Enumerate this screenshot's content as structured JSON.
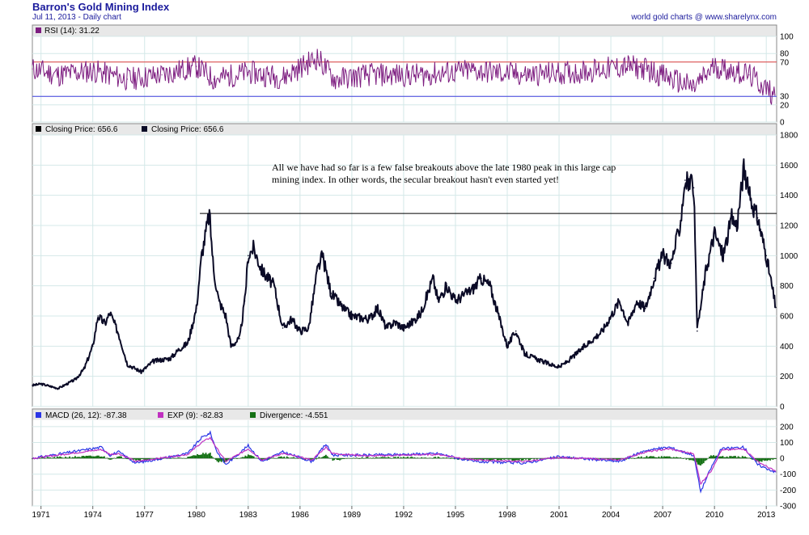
{
  "header": {
    "title": "Barron's Gold Mining Index",
    "subtitle": "Jul 11, 2013 - Daily chart",
    "credit": "world gold charts @ www.sharelynx.com"
  },
  "colors": {
    "price": "#0a0a26",
    "rsi": "#7d1d80",
    "macd": "#2a35e6",
    "exp": "#c030c0",
    "divergence": "#137013",
    "grid": "#d4e8e8",
    "overbought": "#e04040",
    "oversold": "#4040e0"
  },
  "chart_data": [
    {
      "type": "line",
      "panel": "RSI",
      "legend": "RSI (14): 31.22",
      "ylim": [
        0,
        100
      ],
      "yticks": [
        0,
        20,
        30,
        70,
        80,
        100
      ],
      "reference_lines": [
        70,
        30
      ],
      "x": [
        1970.5,
        1972,
        1974,
        1976,
        1978,
        1980,
        1981,
        1983,
        1985,
        1987,
        1988,
        1990,
        1993,
        1996,
        1999,
        2002,
        2005,
        2006,
        2008.8,
        2010,
        2012,
        2013.5
      ],
      "values": [
        62,
        55,
        60,
        50,
        55,
        65,
        50,
        58,
        52,
        75,
        50,
        55,
        55,
        60,
        55,
        58,
        65,
        62,
        40,
        65,
        55,
        31.22
      ]
    },
    {
      "type": "line",
      "panel": "Price",
      "legend": [
        "Closing Price: 656.6",
        "Closing Price: 656.6"
      ],
      "ylim": [
        0,
        1800
      ],
      "yticks": [
        0,
        200,
        400,
        600,
        800,
        1000,
        1200,
        1400,
        1600,
        1800
      ],
      "annotation": "All we have had so far is a few false breakouts above the late 1980 peak in this large cap mining index. In other words, the secular breakout hasn't even started yet!",
      "hline": {
        "y": 1280,
        "x_start": 1980.2,
        "x_end": 2013.6
      },
      "x": [
        1970.5,
        1971,
        1972,
        1973,
        1973.5,
        1974,
        1974.3,
        1974.7,
        1975,
        1975.5,
        1976,
        1976.8,
        1977.5,
        1978.5,
        1979,
        1979.5,
        1980,
        1980.3,
        1980.75,
        1981,
        1981.3,
        1981.7,
        1982,
        1982.5,
        1982.8,
        1983,
        1983.3,
        1983.8,
        1984.5,
        1985,
        1985.5,
        1986,
        1986.5,
        1987,
        1987.3,
        1987.8,
        1988.5,
        1989,
        1990,
        1990.5,
        1991,
        1991.5,
        1992,
        1992.5,
        1993,
        1993.7,
        1994,
        1994.5,
        1995,
        1996,
        1996.5,
        1997,
        1997.5,
        1998,
        1998.5,
        1999,
        2000,
        2001,
        2001.5,
        2002,
        2002.5,
        2003,
        2003.5,
        2004,
        2004.5,
        2005,
        2005.5,
        2006,
        2006.5,
        2007,
        2007.5,
        2008,
        2008.3,
        2008.8,
        2009,
        2009.5,
        2010,
        2010.5,
        2011,
        2011.3,
        2011.7,
        2012,
        2012.5,
        2013,
        2013.55
      ],
      "values": [
        140,
        150,
        120,
        180,
        250,
        400,
        600,
        550,
        620,
        480,
        280,
        230,
        300,
        320,
        380,
        420,
        650,
        1000,
        1280,
        900,
        700,
        600,
        400,
        450,
        700,
        1000,
        1050,
        900,
        800,
        520,
        580,
        500,
        520,
        900,
        1000,
        750,
        650,
        600,
        580,
        650,
        520,
        560,
        520,
        560,
        620,
        850,
        700,
        800,
        700,
        780,
        850,
        800,
        600,
        400,
        500,
        350,
        300,
        260,
        300,
        350,
        400,
        450,
        500,
        600,
        700,
        550,
        700,
        650,
        850,
        1000,
        950,
        1200,
        1500,
        1450,
        500,
        900,
        1150,
        1000,
        1250,
        1200,
        1580,
        1400,
        1250,
        1000,
        656.6
      ]
    },
    {
      "type": "line",
      "panel": "MACD",
      "legend": [
        "MACD (26, 12): -87.38",
        "EXP (9): -82.83",
        "Divergence: -4.551"
      ],
      "ylim": [
        -300,
        240
      ],
      "yticks": [
        -300,
        -200,
        -100,
        0,
        100,
        200
      ],
      "x": [
        1970.5,
        1974.5,
        1975,
        1975.5,
        1976.5,
        1979.5,
        1980.3,
        1980.8,
        1981.2,
        1981.7,
        1983,
        1983.8,
        1985,
        1986.7,
        1987.5,
        1987.9,
        1990,
        1994,
        1996,
        1999,
        2001,
        2004.5,
        2006,
        2007.4,
        2008.2,
        2008.8,
        2009.2,
        2009.8,
        2010.4,
        2011.7,
        2012.5,
        2013.55
      ],
      "series": [
        {
          "name": "MACD (26, 12): -87.38",
          "values": [
            0,
            70,
            20,
            40,
            -30,
            30,
            130,
            160,
            40,
            -40,
            80,
            -20,
            40,
            -20,
            90,
            20,
            20,
            30,
            -20,
            -30,
            10,
            -20,
            50,
            70,
            40,
            20,
            -210,
            -60,
            60,
            70,
            -40,
            -87.38
          ]
        },
        {
          "name": "EXP (9): -82.83",
          "values": [
            0,
            55,
            25,
            30,
            -20,
            25,
            100,
            130,
            60,
            -20,
            60,
            -10,
            30,
            -10,
            70,
            30,
            15,
            25,
            -10,
            -20,
            5,
            -10,
            40,
            60,
            40,
            30,
            -160,
            -80,
            50,
            60,
            -20,
            -82.83
          ]
        },
        {
          "name": "Divergence: -4.551",
          "values": [
            0,
            15,
            -5,
            10,
            -10,
            5,
            30,
            30,
            -20,
            -20,
            20,
            -10,
            10,
            -10,
            20,
            -10,
            5,
            5,
            -10,
            -10,
            5,
            -10,
            10,
            10,
            0,
            -10,
            -50,
            20,
            10,
            10,
            -20,
            -4.551
          ]
        }
      ]
    }
  ],
  "x_axis": {
    "ticks": [
      "1971",
      "1974",
      "1977",
      "1980",
      "1983",
      "1986",
      "1989",
      "1992",
      "1995",
      "1998",
      "2001",
      "2004",
      "2007",
      "2010",
      "2013"
    ]
  }
}
